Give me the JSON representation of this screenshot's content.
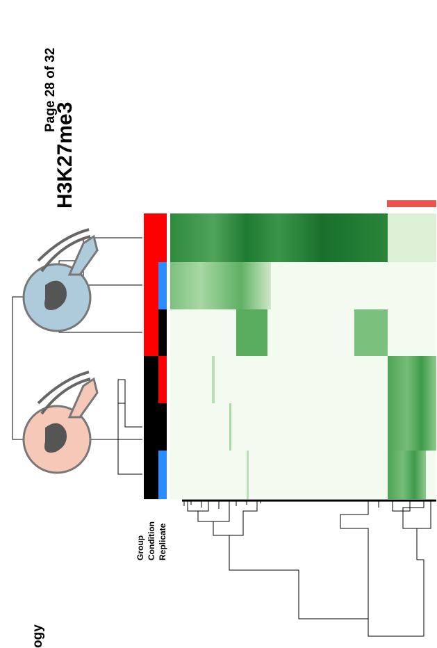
{
  "page_header": "Page 28 of 32",
  "figure": {
    "title": "H3K27me3",
    "annotation_labels": [
      "Group",
      "Condition",
      "Replicate"
    ]
  },
  "page_fragment": "ogy"
}
